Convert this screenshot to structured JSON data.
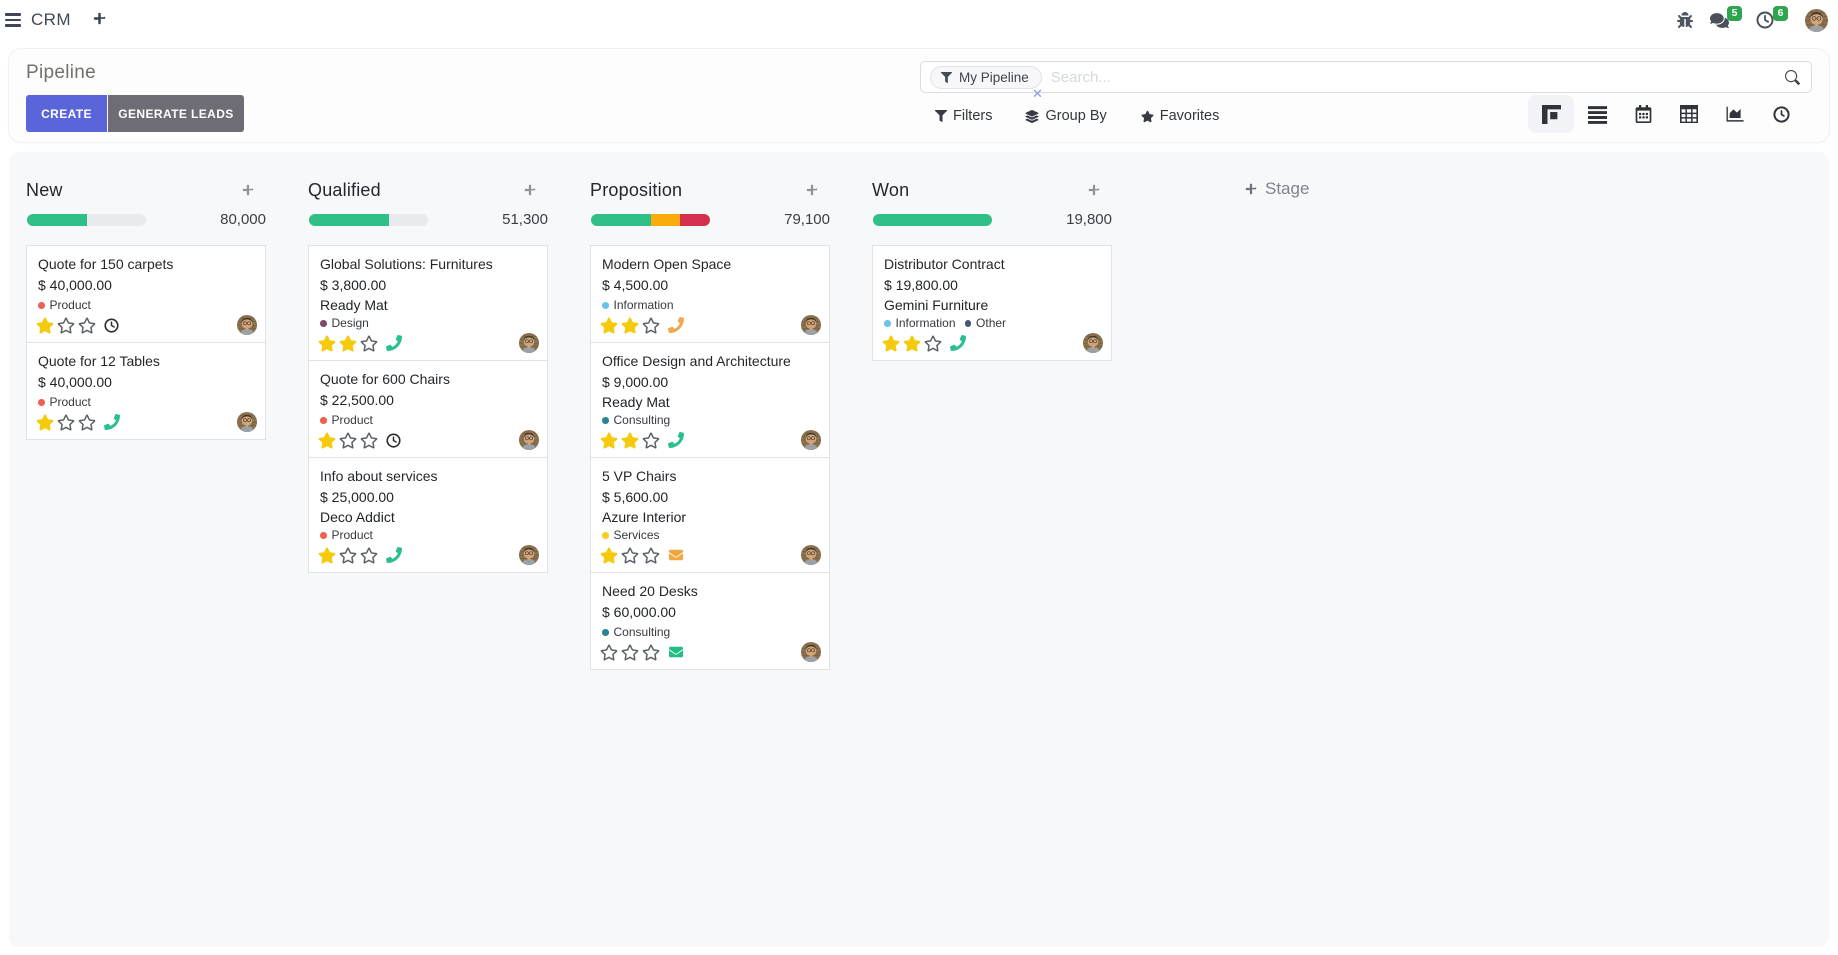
{
  "navbar": {
    "app_name": "CRM",
    "message_badge": "5",
    "activity_badge": "6"
  },
  "control_panel": {
    "breadcrumb": "Pipeline",
    "create_label": "CREATE",
    "generate_leads_label": "GENERATE LEADS",
    "search": {
      "facet": "My Pipeline",
      "placeholder": "Search..."
    },
    "menus": {
      "filters": "Filters",
      "group_by": "Group By",
      "favorites": "Favorites"
    }
  },
  "colors": {
    "progress_success": "#30bf87",
    "progress_warning": "#faad0a",
    "progress_danger": "#d42f4c",
    "progress_muted": "#e8eaed",
    "star_on": "#f4ca0b",
    "star_off": "#5d6269",
    "activity_green": "#2abf92",
    "activity_orange": "#f0a74f",
    "activity_none": "#2e2b28",
    "badge_green": "#2ea44f",
    "create_btn": "#5a65da",
    "generate_btn": "#6e6d76"
  },
  "board": {
    "add_stage_label": "Stage",
    "stars_max": 3,
    "columns": [
      {
        "name": "New",
        "amount": "80,000",
        "progress": [
          {
            "color": "#30bf87",
            "pct": 50
          },
          {
            "color": "#e8eaed",
            "pct": 50
          }
        ],
        "cards": [
          {
            "title": "Quote for 150 carpets",
            "amount": "$ 40,000.00",
            "partner": "",
            "tags": [
              {
                "label": "Product",
                "color": "#f06050"
              }
            ],
            "stars": 1,
            "activity": {
              "type": "clock",
              "color": "#2e2b28"
            }
          },
          {
            "title": "Quote for 12 Tables",
            "amount": "$ 40,000.00",
            "partner": "",
            "tags": [
              {
                "label": "Product",
                "color": "#f06050"
              }
            ],
            "stars": 1,
            "activity": {
              "type": "phone",
              "color": "#2abf92"
            }
          }
        ]
      },
      {
        "name": "Qualified",
        "amount": "51,300",
        "progress": [
          {
            "color": "#30bf87",
            "pct": 67
          },
          {
            "color": "#e8eaed",
            "pct": 33
          }
        ],
        "cards": [
          {
            "title": "Global Solutions: Furnitures",
            "amount": "$ 3,800.00",
            "partner": "Ready Mat",
            "tags": [
              {
                "label": "Design",
                "color": "#814968"
              }
            ],
            "stars": 2,
            "activity": {
              "type": "phone",
              "color": "#2abf92"
            }
          },
          {
            "title": "Quote for 600 Chairs",
            "amount": "$ 22,500.00",
            "partner": "",
            "tags": [
              {
                "label": "Product",
                "color": "#f06050"
              }
            ],
            "stars": 1,
            "activity": {
              "type": "clock",
              "color": "#2e2b28"
            }
          },
          {
            "title": "Info about services",
            "amount": "$ 25,000.00",
            "partner": "Deco Addict",
            "tags": [
              {
                "label": "Product",
                "color": "#f06050"
              }
            ],
            "stars": 1,
            "activity": {
              "type": "phone",
              "color": "#2abf92"
            }
          }
        ]
      },
      {
        "name": "Proposition",
        "amount": "79,100",
        "progress": [
          {
            "color": "#30bf87",
            "pct": 50
          },
          {
            "color": "#faad0a",
            "pct": 25
          },
          {
            "color": "#d42f4c",
            "pct": 25
          }
        ],
        "cards": [
          {
            "title": "Modern Open Space",
            "amount": "$ 4,500.00",
            "partner": "",
            "tags": [
              {
                "label": "Information",
                "color": "#6cc1ed"
              }
            ],
            "stars": 2,
            "activity": {
              "type": "phone",
              "color": "#f0a74f"
            }
          },
          {
            "title": "Office Design and Architecture",
            "amount": "$ 9,000.00",
            "partner": "Ready Mat",
            "tags": [
              {
                "label": "Consulting",
                "color": "#2c8397"
              }
            ],
            "stars": 2,
            "activity": {
              "type": "phone",
              "color": "#2abf92"
            }
          },
          {
            "title": "5 VP Chairs",
            "amount": "$ 5,600.00",
            "partner": "Azure Interior",
            "tags": [
              {
                "label": "Services",
                "color": "#f7cd1f"
              }
            ],
            "stars": 1,
            "activity": {
              "type": "envelope",
              "color": "#f0a73f"
            }
          },
          {
            "title": "Need 20 Desks",
            "amount": "$ 60,000.00",
            "partner": "",
            "tags": [
              {
                "label": "Consulting",
                "color": "#2c8397"
              }
            ],
            "stars": 0,
            "activity": {
              "type": "envelope",
              "color": "#21be83"
            }
          }
        ]
      },
      {
        "name": "Won",
        "amount": "19,800",
        "progress": [
          {
            "color": "#30bf87",
            "pct": 100
          }
        ],
        "cards": [
          {
            "title": "Distributor Contract",
            "amount": "$ 19,800.00",
            "partner": "Gemini Furniture",
            "tags": [
              {
                "label": "Information",
                "color": "#6cc1ed"
              },
              {
                "label": "Other",
                "color": "#475577"
              }
            ],
            "stars": 2,
            "activity": {
              "type": "phone",
              "color": "#2abf92"
            }
          }
        ]
      }
    ]
  }
}
